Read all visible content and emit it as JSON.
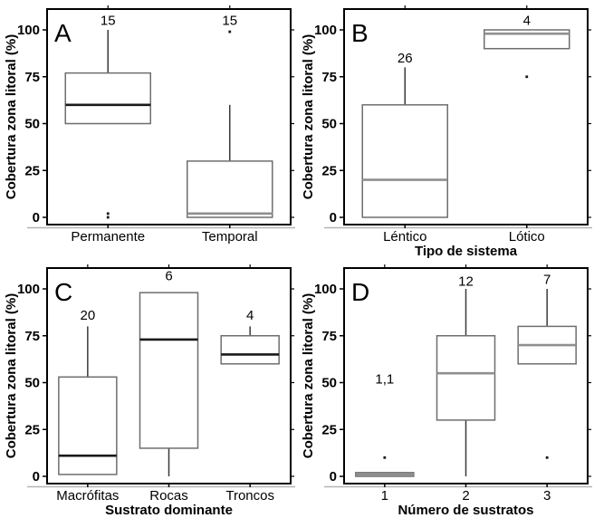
{
  "figure": {
    "title": "",
    "ylabel": "Cobertura zona litoral (%)",
    "colors": {
      "background": "#ffffff",
      "axis": "#000000",
      "box_border": "#6e6e6e",
      "whisker": "#3a3a3a",
      "median_dark": "#1a1a1a",
      "median_gray": "#8f8f8f",
      "outlier": "#1a1a1a",
      "baseline_shadow": "#b5b5b5",
      "text": "#000000"
    }
  },
  "chart_data": [
    {
      "type": "box",
      "panel_label": "A",
      "xlabel": "",
      "ylabel": "Cobertura zona litoral (%)",
      "yticks": [
        0,
        25,
        50,
        75,
        100
      ],
      "ylim": [
        0,
        100
      ],
      "grid": false,
      "categories": [
        "Permanente",
        "Temporal"
      ],
      "boxes": [
        {
          "category": "Permanente",
          "n_label": "15",
          "n_label_y": 105,
          "whisker_low": 50,
          "q1": 50,
          "median": 60,
          "q3": 77,
          "whisker_high": 100,
          "outliers": [
            0,
            2
          ],
          "median_shade": "dark"
        },
        {
          "category": "Temporal",
          "n_label": "15",
          "n_label_y": 105,
          "whisker_low": 0,
          "q1": 0,
          "median": 2,
          "q3": 30,
          "whisker_high": 60,
          "outliers": [
            99
          ],
          "median_shade": "gray"
        }
      ]
    },
    {
      "type": "box",
      "panel_label": "B",
      "xlabel": "Tipo de sistema",
      "ylabel": "Cobertura zona litoral (%)",
      "yticks": [
        0,
        25,
        50,
        75,
        100
      ],
      "ylim": [
        0,
        100
      ],
      "grid": false,
      "categories": [
        "Léntico",
        "Lótico"
      ],
      "boxes": [
        {
          "category": "Léntico",
          "n_label": "26",
          "n_label_y": 85,
          "whisker_low": 0,
          "q1": 0,
          "median": 20,
          "q3": 60,
          "whisker_high": 80,
          "outliers": [],
          "median_shade": "gray"
        },
        {
          "category": "Lótico",
          "n_label": "4",
          "n_label_y": 105,
          "whisker_low": 90,
          "q1": 90,
          "median": 98,
          "q3": 100,
          "whisker_high": 100,
          "outliers": [
            75
          ],
          "median_shade": "gray"
        }
      ]
    },
    {
      "type": "box",
      "panel_label": "C",
      "xlabel": "Sustrato dominante",
      "ylabel": "Cobertura zona litoral (%)",
      "yticks": [
        0,
        25,
        50,
        75,
        100
      ],
      "ylim": [
        0,
        100
      ],
      "grid": false,
      "categories": [
        "Macrófitas",
        "Rocas",
        "Troncos"
      ],
      "boxes": [
        {
          "category": "Macrófitas",
          "n_label": "20",
          "n_label_y": 86,
          "whisker_low": 1,
          "q1": 1,
          "median": 11,
          "q3": 53,
          "whisker_high": 80,
          "outliers": [],
          "median_shade": "dark"
        },
        {
          "category": "Rocas",
          "n_label": "6",
          "n_label_y": 107,
          "whisker_low": 0,
          "q1": 15,
          "median": 73,
          "q3": 98,
          "whisker_high": 98,
          "outliers": [],
          "median_shade": "dark"
        },
        {
          "category": "Troncos",
          "n_label": "4",
          "n_label_y": 86,
          "whisker_low": 60,
          "q1": 60,
          "median": 65,
          "q3": 75,
          "whisker_high": 80,
          "outliers": [],
          "median_shade": "dark"
        }
      ]
    },
    {
      "type": "box",
      "panel_label": "D",
      "xlabel": "Número de sustratos",
      "ylabel": "Cobertura zona litoral (%)",
      "yticks": [
        0,
        25,
        50,
        75,
        100
      ],
      "ylim": [
        0,
        100
      ],
      "grid": false,
      "categories": [
        "1",
        "2",
        "3"
      ],
      "boxes": [
        {
          "category": "1",
          "n_label": "1,1",
          "n_label_y": 52,
          "whisker_low": 0,
          "q1": 0,
          "median": 1,
          "q3": 2,
          "whisker_high": 2,
          "outliers": [
            10
          ],
          "median_shade": "gray"
        },
        {
          "category": "2",
          "n_label": "12",
          "n_label_y": 104,
          "whisker_low": 0,
          "q1": 30,
          "median": 55,
          "q3": 75,
          "whisker_high": 100,
          "outliers": [],
          "median_shade": "gray"
        },
        {
          "category": "3",
          "n_label": "7",
          "n_label_y": 105,
          "whisker_low": 60,
          "q1": 60,
          "median": 70,
          "q3": 80,
          "whisker_high": 100,
          "outliers": [
            10
          ],
          "median_shade": "gray"
        }
      ]
    }
  ]
}
